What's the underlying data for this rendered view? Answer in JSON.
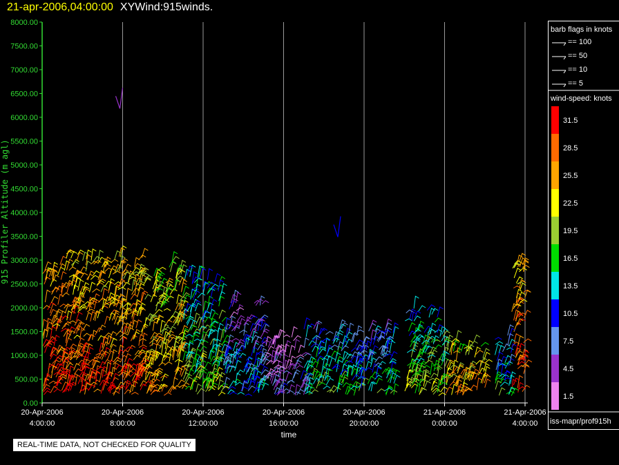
{
  "title": {
    "datetime": "21-apr-2006,04:00:00",
    "product": "XYWind:915winds."
  },
  "note": "REAL-TIME DATA, NOT CHECKED FOR QUALITY",
  "chart_data": {
    "type": "scatter",
    "subtype": "wind-barbs",
    "xlabel": "time",
    "ylabel": "915 Profiler Altitude (m agl)",
    "x_ticks": [
      {
        "date": "20-Apr-2006",
        "time": "4:00:00"
      },
      {
        "date": "20-Apr-2006",
        "time": "8:00:00"
      },
      {
        "date": "20-Apr-2006",
        "time": "12:00:00"
      },
      {
        "date": "20-Apr-2006",
        "time": "16:00:00"
      },
      {
        "date": "20-Apr-2006",
        "time": "20:00:00"
      },
      {
        "date": "21-Apr-2006",
        "time": "0:00:00"
      },
      {
        "date": "21-Apr-2006",
        "time": "4:00:00"
      }
    ],
    "xlim": [
      "2006-04-20T04:00",
      "2006-04-21T04:00"
    ],
    "ylim": [
      0,
      8000
    ],
    "y_ticks": [
      "0.00",
      "500.00",
      "1000.00",
      "1500.00",
      "2000.00",
      "2500.00",
      "3000.00",
      "3500.00",
      "4000.00",
      "4500.00",
      "5000.00",
      "5500.00",
      "6000.00",
      "6500.00",
      "7000.00",
      "7500.00",
      "8000.00"
    ],
    "grid": "vertical-lines",
    "axis_color": "#33dd33",
    "profiles": [
      {
        "start": "2006-04-20T04:00",
        "end": "2006-04-20T06:00",
        "top": 3200,
        "speed": 31
      },
      {
        "start": "2006-04-20T06:00",
        "end": "2006-04-20T09:00",
        "top": 3100,
        "speed": 30
      },
      {
        "start": "2006-04-20T09:00",
        "end": "2006-04-20T11:00",
        "top": 3000,
        "speed": 27
      },
      {
        "start": "2006-04-20T11:00",
        "end": "2006-04-20T13:00",
        "top": 2700,
        "speed": 20
      },
      {
        "start": "2006-04-20T13:00",
        "end": "2006-04-20T15:00",
        "top": 2200,
        "speed": 13
      },
      {
        "start": "2006-04-20T15:00",
        "end": "2006-04-20T17:00",
        "top": 1400,
        "speed": 8
      },
      {
        "start": "2006-04-20T17:00",
        "end": "2006-04-20T19:00",
        "top": 1600,
        "speed": 17
      },
      {
        "start": "2006-04-20T19:00",
        "end": "2006-04-20T21:30",
        "top": 1600,
        "speed": 16
      },
      {
        "start": "2006-04-20T22:00",
        "end": "2006-04-21T00:00",
        "top": 2000,
        "speed": 20
      },
      {
        "start": "2006-04-21T00:00",
        "end": "2006-04-21T02:00",
        "top": 1300,
        "speed": 27
      },
      {
        "start": "2006-04-21T02:30",
        "end": "2006-04-21T03:20",
        "top": 1500,
        "speed": 16
      },
      {
        "start": "2006-04-21T03:20",
        "end": "2006-04-21T04:00",
        "top": 3000,
        "speed": 31
      }
    ],
    "outliers": [
      {
        "time": "2006-04-20T08:00",
        "alt": 6300,
        "speed": 3
      },
      {
        "time": "2006-04-20T18:50",
        "alt": 3600,
        "speed": 10
      }
    ]
  },
  "legend": {
    "barb_title": "barb flags in knots",
    "barbs": [
      {
        "label": "== 100"
      },
      {
        "label": "== 50"
      },
      {
        "label": "== 10"
      },
      {
        "label": "== 5"
      }
    ],
    "speed_title": "wind-speed: knots",
    "color_bins": [
      {
        "label": "31.5",
        "color": "#ff0000"
      },
      {
        "label": "28.5",
        "color": "#ff6a00"
      },
      {
        "label": "25.5",
        "color": "#ffa500"
      },
      {
        "label": "22.5",
        "color": "#ffff00"
      },
      {
        "label": "19.5",
        "color": "#9acd32"
      },
      {
        "label": "16.5",
        "color": "#00dd00"
      },
      {
        "label": "13.5",
        "color": "#00e5e5"
      },
      {
        "label": "10.5",
        "color": "#0000ff"
      },
      {
        "label": "7.5",
        "color": "#6495ed"
      },
      {
        "label": "4.5",
        "color": "#9932cc"
      },
      {
        "label": "1.5",
        "color": "#ee82ee"
      }
    ],
    "source": "iss-mapr/prof915h"
  }
}
